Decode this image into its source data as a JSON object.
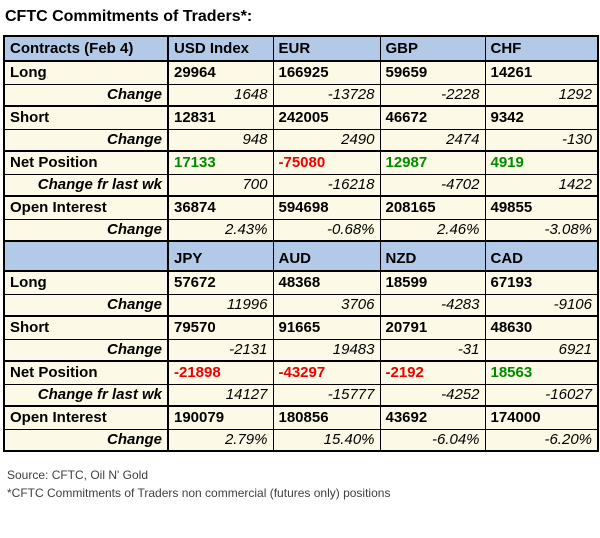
{
  "title": "CFTC Commitments of Traders*:",
  "colors": {
    "header_bg": "#b2c9e8",
    "body_bg": "#fcfae6",
    "positive": "#008a00",
    "negative": "#ee0000"
  },
  "table": {
    "sections": [
      {
        "header": {
          "label": "Contracts (Feb 4)",
          "columns": [
            "USD Index",
            "EUR",
            "GBP",
            "CHF"
          ]
        },
        "rows": [
          {
            "label": "Long",
            "type": "main",
            "values": [
              "29964",
              "166925",
              "59659",
              "14261"
            ]
          },
          {
            "label": "Change",
            "type": "change",
            "values": [
              "1648",
              "-13728",
              "-2228",
              "1292"
            ]
          },
          {
            "label": "Short",
            "type": "main",
            "values": [
              "12831",
              "242005",
              "46672",
              "9342"
            ]
          },
          {
            "label": "Change",
            "type": "change",
            "values": [
              "948",
              "2490",
              "2474",
              "-130"
            ]
          },
          {
            "label": "Net Position",
            "type": "net",
            "values": [
              "17133",
              "-75080",
              "12987",
              "4919"
            ]
          },
          {
            "label": "Change fr last wk",
            "type": "change",
            "values": [
              "700",
              "-16218",
              "-4702",
              "1422"
            ]
          },
          {
            "label": "Open Interest",
            "type": "main",
            "values": [
              "36874",
              "594698",
              "208165",
              "49855"
            ]
          },
          {
            "label": "Change",
            "type": "change",
            "values": [
              "2.43%",
              "-0.68%",
              "2.46%",
              "-3.08%"
            ]
          }
        ]
      },
      {
        "header": {
          "label": "",
          "columns": [
            "JPY",
            "AUD",
            "NZD",
            "CAD"
          ]
        },
        "rows": [
          {
            "label": "Long",
            "type": "main",
            "values": [
              "57672",
              "48368",
              "18599",
              "67193"
            ]
          },
          {
            "label": "Change",
            "type": "change",
            "values": [
              "11996",
              "3706",
              "-4283",
              "-9106"
            ]
          },
          {
            "label": "Short",
            "type": "main",
            "values": [
              "79570",
              "91665",
              "20791",
              "48630"
            ]
          },
          {
            "label": "Change",
            "type": "change",
            "values": [
              "-2131",
              "19483",
              "-31",
              "6921"
            ]
          },
          {
            "label": "Net Position",
            "type": "net",
            "values": [
              "-21898",
              "-43297",
              "-2192",
              "18563"
            ]
          },
          {
            "label": "Change fr last wk",
            "type": "change",
            "values": [
              "14127",
              "-15777",
              "-4252",
              "-16027"
            ]
          },
          {
            "label": "Open Interest",
            "type": "main",
            "values": [
              "190079",
              "180856",
              "43692",
              "174000"
            ]
          },
          {
            "label": "Change",
            "type": "change",
            "values": [
              "2.79%",
              "15.40%",
              "-6.04%",
              "-6.20%"
            ]
          }
        ]
      }
    ]
  },
  "footer": {
    "source": "Source: CFTC, Oil N' Gold",
    "note": "*CFTC Commitments of Traders non commercial (futures only) positions"
  }
}
